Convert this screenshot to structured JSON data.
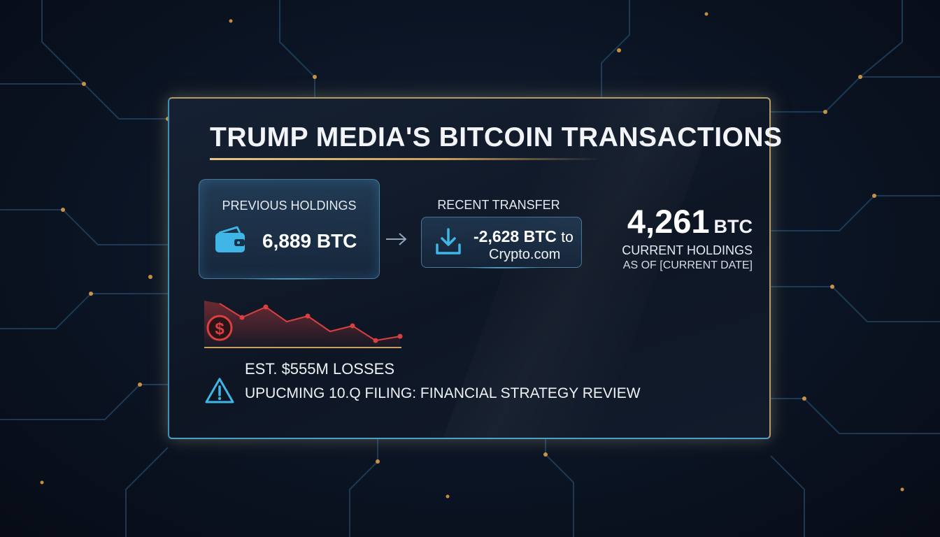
{
  "title": "TRUMP MEDIA'S BITCOIN TRANSACTIONS",
  "previous": {
    "label": "PREVIOUS HOLDINGS",
    "amount": "6,889 BTC",
    "icon": "wallet-icon"
  },
  "transfer": {
    "label": "RECENT TRANSFER",
    "amount": "-2,628 BTC",
    "to_word": "to",
    "destination": "Crypto.com",
    "icon": "download-icon"
  },
  "current": {
    "amount": "4,261",
    "unit": "BTC",
    "caption": "CURRENT HOLDINGS",
    "as_of": "AS OF [CURRENT DATE]"
  },
  "losses": {
    "text": "EST. $555M LOSSES",
    "icon": "dollar-icon"
  },
  "warning": {
    "text": "UPUCMING 10.Q FILING: FINANCIAL STRATEGY REVIEW",
    "icon": "warning-icon"
  },
  "colors": {
    "accent_gold": "#c9a05a",
    "accent_blue": "#3fb6e6",
    "loss_red": "#d94040"
  }
}
